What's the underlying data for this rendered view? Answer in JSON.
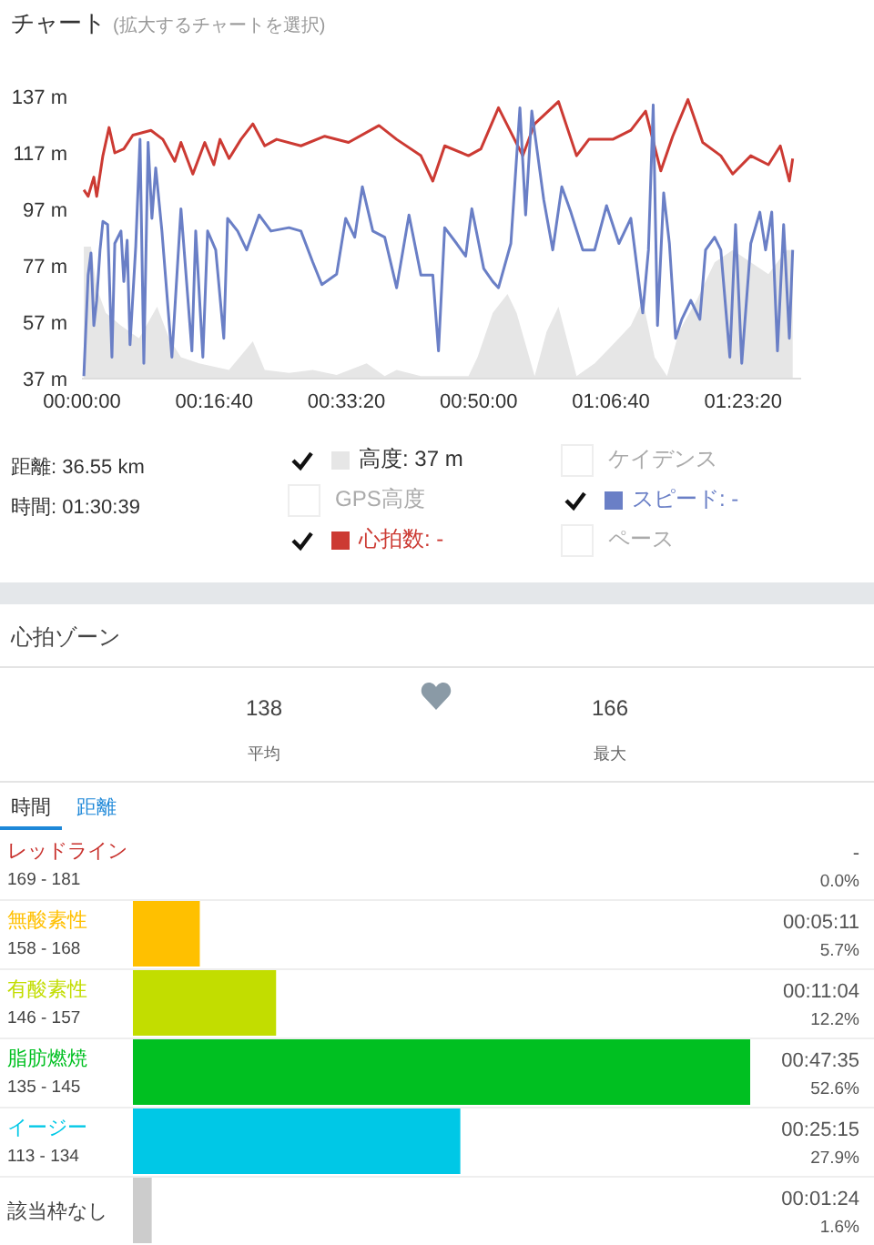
{
  "chart_data": [
    {
      "type": "line",
      "title": "チャート",
      "subtitle": "(拡大するチャートを選択)",
      "xlim": [
        0,
        1.5108
      ],
      "xticks": [
        {
          "value": 0,
          "label": "00:00:00"
        },
        {
          "value": 0.27778,
          "label": "00:16:40"
        },
        {
          "value": 0.55556,
          "label": "00:33:20"
        },
        {
          "value": 0.83333,
          "label": "00:50:00"
        },
        {
          "value": 1.11111,
          "label": "01:06:40"
        },
        {
          "value": 1.38889,
          "label": "01:23:20"
        }
      ],
      "ylim": [
        37,
        137
      ],
      "yticks": [
        {
          "value": 37,
          "label": "37 m"
        },
        {
          "value": 57,
          "label": "57 m"
        },
        {
          "value": 77,
          "label": "77 m"
        },
        {
          "value": 97,
          "label": "97 m"
        },
        {
          "value": 117,
          "label": "117 m"
        },
        {
          "value": 137,
          "label": "137 m"
        }
      ],
      "legend": "bottom",
      "marker": "none",
      "annotations": [
        "距離: 36.55 km",
        "時間: 01:30:39",
        "GPS高度",
        "ケイデンス",
        "ペース"
      ],
      "series": [
        {
          "name": "高度: 37 m",
          "type": "area",
          "color": "#e6e6e6",
          "x": [
            0.004,
            0.019,
            0.031,
            0.05,
            0.082,
            0.12,
            0.158,
            0.183,
            0.208,
            0.246,
            0.309,
            0.359,
            0.384,
            0.435,
            0.485,
            0.535,
            0.598,
            0.636,
            0.661,
            0.712,
            0.812,
            0.831,
            0.863,
            0.894,
            0.913,
            0.951,
            0.976,
            1.001,
            1.039,
            1.077,
            1.115,
            1.153,
            1.178,
            1.203,
            1.229,
            1.254,
            1.291,
            1.329,
            1.367,
            1.405,
            1.442,
            1.48,
            1.493
          ],
          "values": [
            83.8,
            83.8,
            69.2,
            60.3,
            55.8,
            51.3,
            62.5,
            51.3,
            44.6,
            42.4,
            40.1,
            50.2,
            40.1,
            39,
            40.1,
            38.3,
            42.4,
            37.9,
            40.1,
            37.9,
            37.9,
            44.6,
            60.3,
            67,
            60.3,
            37.9,
            53.6,
            62.5,
            37.9,
            42.4,
            49,
            55.8,
            64.7,
            44.6,
            37.9,
            53.6,
            64.7,
            78.2,
            82.6,
            78.2,
            74,
            82.6,
            82.6
          ]
        },
        {
          "name": "心拍数: -",
          "color": "#cc3a33",
          "x": [
            0.004,
            0.013,
            0.025,
            0.031,
            0.044,
            0.057,
            0.069,
            0.088,
            0.107,
            0.145,
            0.17,
            0.195,
            0.208,
            0.233,
            0.258,
            0.277,
            0.29,
            0.309,
            0.334,
            0.359,
            0.384,
            0.409,
            0.46,
            0.51,
            0.56,
            0.624,
            0.661,
            0.712,
            0.737,
            0.762,
            0.812,
            0.838,
            0.875,
            0.926,
            0.951,
            1.001,
            1.039,
            1.065,
            1.115,
            1.153,
            1.184,
            1.216,
            1.241,
            1.273,
            1.304,
            1.342,
            1.367,
            1.405,
            1.442,
            1.467,
            1.486,
            1.493
          ],
          "values": [
            103.9,
            101.6,
            108.4,
            101.6,
            116,
            126,
            117,
            118.4,
            123.3,
            125,
            121.8,
            114,
            120.7,
            109.5,
            120.7,
            112.8,
            121.8,
            115,
            121.8,
            127.3,
            119.5,
            121.8,
            119.5,
            122.9,
            120.7,
            126.7,
            121.8,
            116,
            107,
            119.5,
            116,
            118.4,
            133,
            116,
            127.3,
            135.2,
            116,
            121.8,
            121.8,
            125,
            131.8,
            110.6,
            122.9,
            135.9,
            120.7,
            116,
            109.5,
            116,
            112.8,
            119.5,
            107,
            115
          ]
        },
        {
          "name": "スピード: -",
          "color": "#6a7fc6",
          "x": [
            0.004,
            0.013,
            0.019,
            0.025,
            0.031,
            0.038,
            0.044,
            0.054,
            0.063,
            0.069,
            0.082,
            0.088,
            0.095,
            0.101,
            0.113,
            0.122,
            0.13,
            0.139,
            0.147,
            0.155,
            0.168,
            0.189,
            0.208,
            0.231,
            0.239,
            0.254,
            0.264,
            0.281,
            0.298,
            0.306,
            0.327,
            0.346,
            0.372,
            0.397,
            0.435,
            0.46,
            0.485,
            0.504,
            0.535,
            0.554,
            0.573,
            0.589,
            0.611,
            0.636,
            0.661,
            0.687,
            0.712,
            0.737,
            0.749,
            0.762,
            0.787,
            0.806,
            0.819,
            0.831,
            0.844,
            0.863,
            0.875,
            0.901,
            0.92,
            0.932,
            0.945,
            0.97,
            0.989,
            1.008,
            1.027,
            1.052,
            1.077,
            1.102,
            1.128,
            1.153,
            1.178,
            1.19,
            1.2,
            1.209,
            1.222,
            1.234,
            1.247,
            1.26,
            1.279,
            1.298,
            1.31,
            1.329,
            1.342,
            1.361,
            1.373,
            1.386,
            1.405,
            1.424,
            1.436,
            1.449,
            1.461,
            1.474,
            1.486,
            1.493
          ],
          "values": [
            37.9,
            73.7,
            81.5,
            55.8,
            64.7,
            82.6,
            92.7,
            91.6,
            44.6,
            84.9,
            89.3,
            71.4,
            86,
            49,
            83.8,
            121.8,
            42.4,
            120.7,
            93.8,
            111.7,
            89.3,
            44.6,
            97.2,
            46.8,
            89.3,
            44.6,
            89.3,
            82.6,
            51.3,
            93.8,
            89.3,
            82.6,
            95,
            89.3,
            90.5,
            89.3,
            78.2,
            70.3,
            74,
            93.8,
            87.1,
            105,
            89.3,
            87.1,
            69.2,
            95,
            73.7,
            73.7,
            46.8,
            90.5,
            84.9,
            80.4,
            97.2,
            87.1,
            76,
            71.4,
            69.2,
            84.9,
            133,
            95,
            131.8,
            100.5,
            82.6,
            105,
            96,
            82.6,
            82.6,
            98.3,
            84.9,
            93.8,
            60.3,
            82.6,
            134,
            55.8,
            102.8,
            84.9,
            51.3,
            58,
            64.7,
            58,
            82.6,
            87.1,
            82.6,
            44.6,
            91.6,
            42.4,
            84.9,
            96,
            82.6,
            96,
            46.8,
            91.6,
            51.3,
            82.6
          ]
        }
      ]
    },
    {
      "type": "bar",
      "orientation": "horizontal",
      "title": "心拍ゾーン",
      "categories": [
        "レッドライン\n169 - 181",
        "無酸素性\n158 - 168",
        "有酸素性\n146 - 157",
        "脂肪燃焼\n135 - 145",
        "イージー\n113 - 134",
        "該当枠なし"
      ],
      "values": [
        0.0,
        5.7,
        12.2,
        52.6,
        27.9,
        1.6
      ],
      "colors": [
        "#c8302c",
        "#ffc000",
        "#c2dd00",
        "#00c021",
        "#00c8e6",
        "#cccccc"
      ],
      "value_labels": [
        "-\n0.0%",
        "00:05:11\n5.7%",
        "00:11:04\n12.2%",
        "00:47:35\n52.6%",
        "00:25:15\n27.9%",
        "00:01:24\n1.6%"
      ],
      "annotations": [
        "138",
        "平均",
        "166",
        "最大",
        "時間",
        "距離"
      ]
    }
  ]
}
